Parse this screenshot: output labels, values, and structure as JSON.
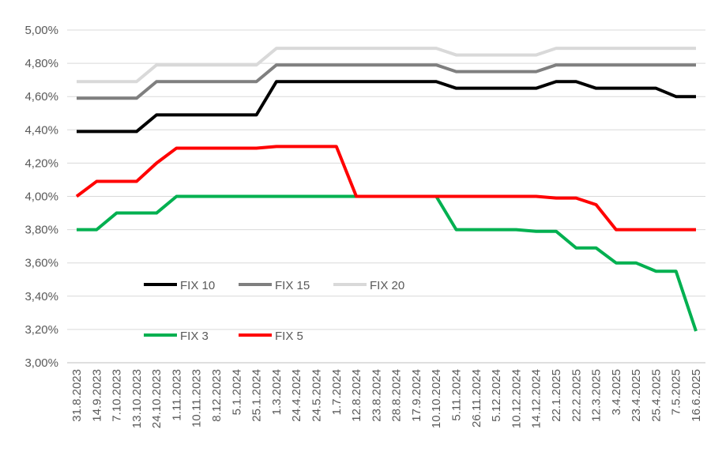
{
  "chart_data": {
    "type": "line",
    "categories": [
      "31.8.2023",
      "14.9.2023",
      "7.10.2023",
      "13.10.2023",
      "24.10.2023",
      "1.11.2023",
      "10.11.2023",
      "8.12.2023",
      "5.1.2024",
      "25.1.2024",
      "1.3.2024",
      "24.4.2024",
      "24.5.2024",
      "1.7.2024",
      "12.8.2024",
      "23.8.2024",
      "28.8.2024",
      "17.9.2024",
      "10.10.2024",
      "5.11.2024",
      "26.11.2024",
      "5.12.2024",
      "10.12.2024",
      "14.12.2024",
      "22.1.2025",
      "22.2.2025",
      "12.3.2025",
      "3.4.2025",
      "23.4.2025",
      "25.4.2025",
      "7.5.2025",
      "16.6.2025"
    ],
    "series": [
      {
        "name": "FIX 10",
        "color": "#000000",
        "values": [
          4.39,
          4.39,
          4.39,
          4.39,
          4.49,
          4.49,
          4.49,
          4.49,
          4.49,
          4.49,
          4.69,
          4.69,
          4.69,
          4.69,
          4.69,
          4.69,
          4.69,
          4.69,
          4.69,
          4.65,
          4.65,
          4.65,
          4.65,
          4.65,
          4.69,
          4.69,
          4.65,
          4.65,
          4.65,
          4.65,
          4.6,
          4.6
        ]
      },
      {
        "name": "FIX 15",
        "color": "#7f7f7f",
        "values": [
          4.59,
          4.59,
          4.59,
          4.59,
          4.69,
          4.69,
          4.69,
          4.69,
          4.69,
          4.69,
          4.79,
          4.79,
          4.79,
          4.79,
          4.79,
          4.79,
          4.79,
          4.79,
          4.79,
          4.75,
          4.75,
          4.75,
          4.75,
          4.75,
          4.79,
          4.79,
          4.79,
          4.79,
          4.79,
          4.79,
          4.79,
          4.79
        ]
      },
      {
        "name": "FIX 20",
        "color": "#d9d9d9",
        "values": [
          4.69,
          4.69,
          4.69,
          4.69,
          4.79,
          4.79,
          4.79,
          4.79,
          4.79,
          4.79,
          4.89,
          4.89,
          4.89,
          4.89,
          4.89,
          4.89,
          4.89,
          4.89,
          4.89,
          4.85,
          4.85,
          4.85,
          4.85,
          4.85,
          4.89,
          4.89,
          4.89,
          4.89,
          4.89,
          4.89,
          4.89,
          4.89
        ]
      },
      {
        "name": "FIX 3",
        "color": "#00b050",
        "values": [
          3.8,
          3.8,
          3.9,
          3.9,
          3.9,
          4.0,
          4.0,
          4.0,
          4.0,
          4.0,
          4.0,
          4.0,
          4.0,
          4.0,
          4.0,
          4.0,
          4.0,
          4.0,
          4.0,
          3.8,
          3.8,
          3.8,
          3.8,
          3.79,
          3.79,
          3.69,
          3.69,
          3.6,
          3.6,
          3.55,
          3.55,
          3.19
        ]
      },
      {
        "name": "FIX 5",
        "color": "#ff0000",
        "values": [
          4.0,
          4.09,
          4.09,
          4.09,
          4.2,
          4.29,
          4.29,
          4.29,
          4.29,
          4.29,
          4.3,
          4.3,
          4.3,
          4.3,
          4.0,
          4.0,
          4.0,
          4.0,
          4.0,
          4.0,
          4.0,
          4.0,
          4.0,
          4.0,
          3.99,
          3.99,
          3.95,
          3.8,
          3.8,
          3.8,
          3.8,
          3.8
        ]
      }
    ],
    "ylim": [
      3.0,
      5.0
    ],
    "yticks": [
      {
        "value": 3.0,
        "label": "3,00%"
      },
      {
        "value": 3.2,
        "label": "3,20%"
      },
      {
        "value": 3.4,
        "label": "3,40%"
      },
      {
        "value": 3.6,
        "label": "3,60%"
      },
      {
        "value": 3.8,
        "label": "3,80%"
      },
      {
        "value": 4.0,
        "label": "4,00%"
      },
      {
        "value": 4.2,
        "label": "4,20%"
      },
      {
        "value": 4.4,
        "label": "4,40%"
      },
      {
        "value": 4.6,
        "label": "4,60%"
      },
      {
        "value": 4.8,
        "label": "4,80%"
      },
      {
        "value": 5.0,
        "label": "5,00%"
      }
    ],
    "grid": true
  }
}
